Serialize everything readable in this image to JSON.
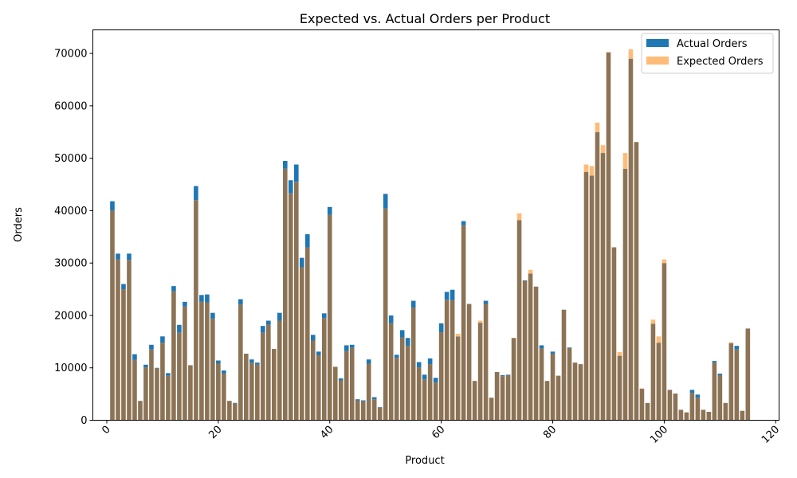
{
  "chart_data": {
    "type": "bar",
    "title": "Expected vs. Actual Orders per Product",
    "xlabel": "Product",
    "ylabel": "Orders",
    "xlim": [
      -2.5,
      120.6
    ],
    "ylim": [
      0,
      74500
    ],
    "xticks": [
      0,
      20,
      40,
      60,
      80,
      100,
      120
    ],
    "yticks": [
      0,
      10000,
      20000,
      30000,
      40000,
      50000,
      60000,
      70000
    ],
    "legend": "top-right",
    "colors": {
      "actual": "#1f77b4",
      "expected": "#ffbb78",
      "overlap": "#8c7355"
    },
    "x": [
      1,
      2,
      3,
      4,
      5,
      6,
      7,
      8,
      9,
      10,
      11,
      12,
      13,
      14,
      15,
      16,
      17,
      18,
      19,
      20,
      21,
      22,
      23,
      24,
      25,
      26,
      27,
      28,
      29,
      30,
      31,
      32,
      33,
      34,
      35,
      36,
      37,
      38,
      39,
      40,
      41,
      42,
      43,
      44,
      45,
      46,
      47,
      48,
      49,
      50,
      51,
      52,
      53,
      54,
      55,
      56,
      57,
      58,
      59,
      60,
      61,
      62,
      63,
      64,
      65,
      66,
      67,
      68,
      69,
      70,
      71,
      72,
      73,
      74,
      75,
      76,
      77,
      78,
      79,
      80,
      81,
      82,
      83,
      84,
      85,
      86,
      87,
      88,
      89,
      90,
      91,
      92,
      93,
      94,
      95,
      96,
      97,
      98,
      99,
      100,
      101,
      102,
      103,
      104,
      105,
      106,
      107,
      108,
      109,
      110,
      111,
      112,
      113,
      114,
      115
    ],
    "series": [
      {
        "name": "Actual Orders",
        "values": [
          41800,
          31800,
          26000,
          31800,
          12600,
          3700,
          10600,
          14400,
          10000,
          16000,
          9000,
          25600,
          18200,
          22600,
          10500,
          44700,
          23900,
          24000,
          20500,
          11400,
          9500,
          3700,
          3300,
          23100,
          12700,
          11600,
          11000,
          18000,
          19000,
          13600,
          20500,
          49500,
          45800,
          48800,
          31000,
          35500,
          16300,
          13100,
          20400,
          40700,
          10200,
          8000,
          14300,
          14400,
          4000,
          3800,
          11600,
          4400,
          2500,
          43200,
          20000,
          12500,
          17200,
          15700,
          22800,
          11100,
          8700,
          11800,
          8100,
          18500,
          24500,
          24900,
          16000,
          38000,
          22200,
          7500,
          18600,
          22800,
          4300,
          9200,
          8600,
          8700,
          15700,
          38200,
          26700,
          28000,
          25500,
          14300,
          7500,
          13100,
          8500,
          21100,
          13900,
          11000,
          10700,
          47400,
          46700,
          55000,
          51000,
          70200,
          33000,
          12300,
          48000,
          69000,
          53100,
          6000,
          3300,
          18400,
          14800,
          30000,
          5800,
          5100,
          2000,
          1500,
          5800,
          4900,
          2000,
          1600,
          11300,
          8900,
          3300,
          14700,
          14200,
          1800,
          17500
        ]
      },
      {
        "name": "Expected Orders",
        "values": [
          40000,
          30700,
          25000,
          30600,
          11500,
          3700,
          10100,
          13500,
          9900,
          14800,
          8500,
          24600,
          16700,
          21700,
          10500,
          42000,
          22600,
          22500,
          19400,
          10800,
          8900,
          3700,
          3200,
          22100,
          12700,
          11000,
          10600,
          16700,
          18200,
          13600,
          19000,
          48000,
          43300,
          45500,
          29200,
          33000,
          15200,
          12400,
          19500,
          39200,
          10200,
          7600,
          13200,
          13800,
          3800,
          3600,
          10800,
          4000,
          2400,
          40400,
          18500,
          11900,
          15800,
          14200,
          21500,
          10100,
          7800,
          10700,
          7200,
          16800,
          23000,
          22900,
          16500,
          37200,
          22200,
          7500,
          19000,
          22200,
          4300,
          9200,
          8400,
          8600,
          15700,
          39500,
          26600,
          28700,
          25500,
          13700,
          7500,
          12700,
          8500,
          21100,
          13800,
          11000,
          10700,
          48800,
          48500,
          56800,
          52500,
          70300,
          33000,
          13000,
          51000,
          70800,
          53100,
          6100,
          3300,
          19200,
          16000,
          30700,
          5800,
          5100,
          2000,
          1500,
          5200,
          4300,
          2000,
          1600,
          11000,
          8600,
          3300,
          14900,
          13500,
          1800,
          17500
        ]
      }
    ]
  }
}
